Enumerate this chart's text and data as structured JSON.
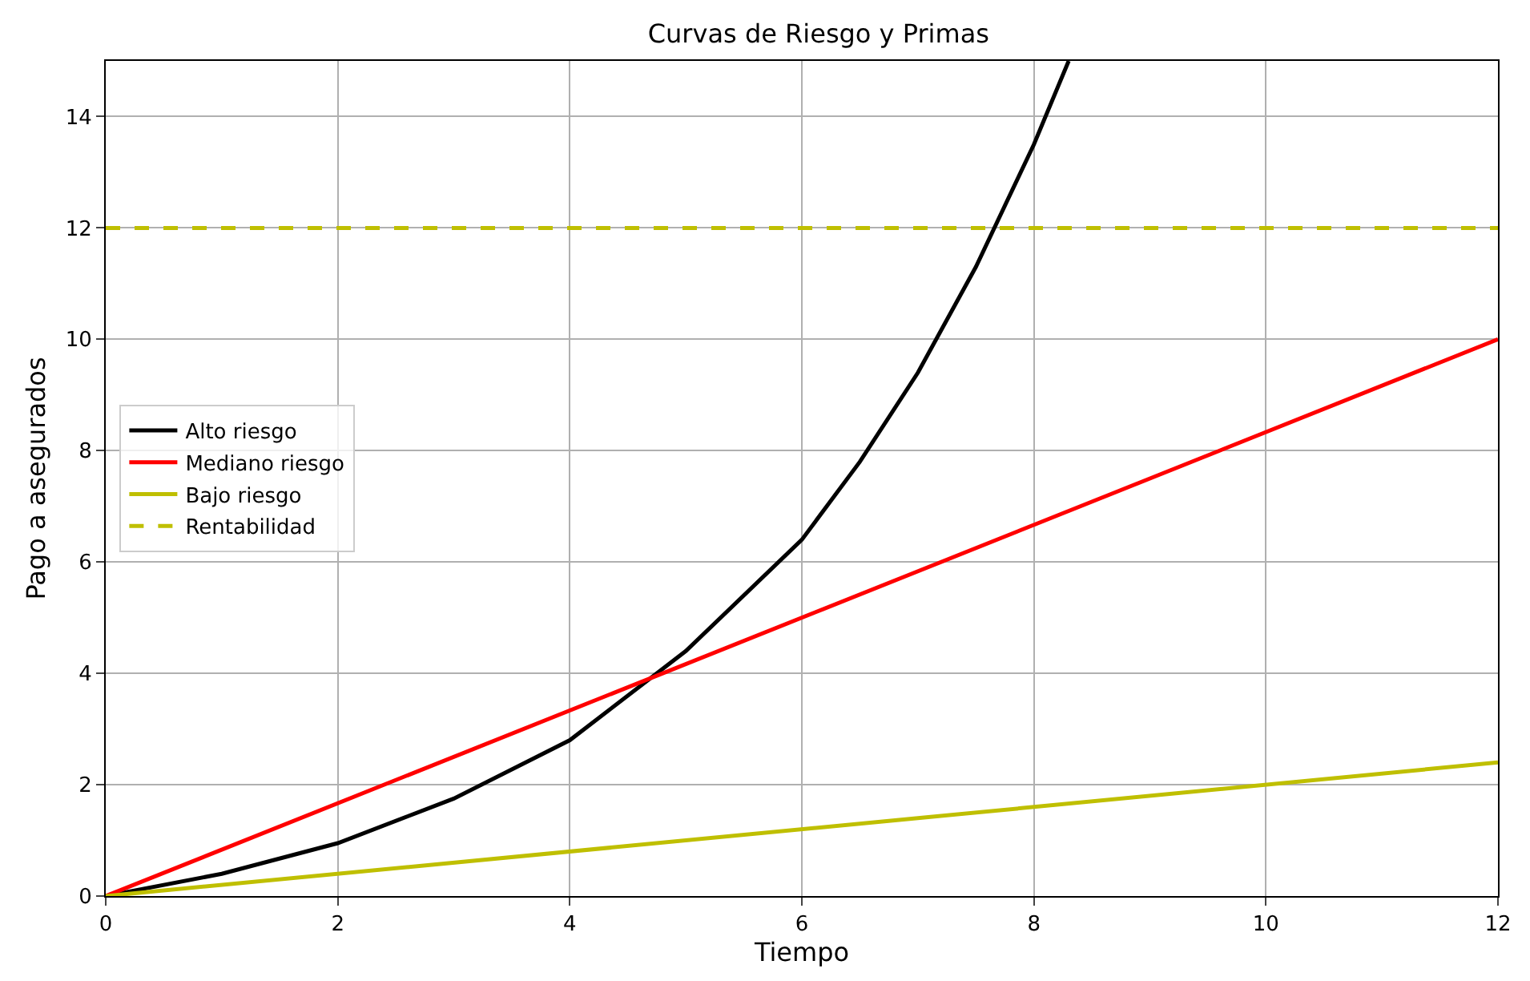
{
  "chart_data": {
    "type": "line",
    "title": "Curvas de Riesgo y Primas",
    "xlabel": "Tiempo",
    "ylabel": "Pago a asegurados",
    "xlim": [
      0,
      12
    ],
    "xticks": [
      0,
      2,
      4,
      6,
      8,
      10,
      12
    ],
    "ylim": [
      0,
      15
    ],
    "yticks": [
      0,
      2,
      4,
      6,
      8,
      10,
      12,
      14
    ],
    "grid": true,
    "legend": "left",
    "line_style": "solid",
    "marker": "none",
    "series": [
      {
        "name": "Alto riesgo",
        "color": "#000000",
        "x": [
          0,
          1,
          2,
          3,
          4,
          5,
          6,
          6.5,
          7,
          7.5,
          8,
          8.3
        ],
        "values": [
          0,
          0.4,
          0.95,
          1.75,
          2.8,
          4.4,
          6.4,
          7.8,
          9.4,
          11.3,
          13.5,
          15
        ]
      },
      {
        "name": "Mediano riesgo",
        "color": "#ff0000",
        "x": [
          0,
          12
        ],
        "values": [
          0,
          10
        ]
      },
      {
        "name": "Bajo riesgo",
        "color": "#bfbf00",
        "x": [
          0,
          12
        ],
        "values": [
          0,
          2.4
        ]
      },
      {
        "name": "Rentabilidad",
        "color": "#bfbf00",
        "x": [
          0,
          12
        ],
        "values": [
          12,
          12
        ],
        "line_style": "dashed"
      }
    ]
  }
}
